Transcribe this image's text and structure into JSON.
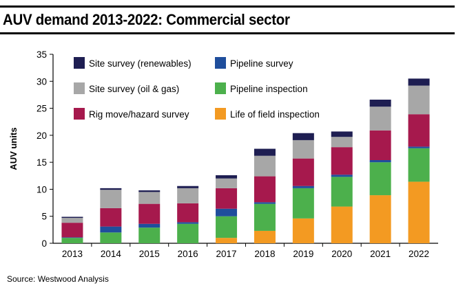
{
  "header": {
    "title": "AUV demand 2013-2022: Commercial sector"
  },
  "footer": {
    "source": "Source: Westwood Analysis"
  },
  "chart_data": {
    "type": "bar",
    "stacked": true,
    "title": "AUV demand 2013-2022: Commercial sector",
    "xlabel": "",
    "ylabel": "AUV units",
    "ylim": [
      0,
      35
    ],
    "yticks": [
      0,
      5,
      10,
      15,
      20,
      25,
      30,
      35
    ],
    "grid": false,
    "legend_position": "top-left",
    "categories": [
      "2013",
      "2014",
      "2015",
      "2016",
      "2017",
      "2018",
      "2019",
      "2020",
      "2021",
      "2022"
    ],
    "series": [
      {
        "name": "Life of field inspection",
        "color": "#f39a22",
        "values": [
          0,
          0,
          0,
          0,
          1.0,
          2.3,
          4.6,
          6.8,
          8.9,
          11.4
        ]
      },
      {
        "name": "Pipeline inspection",
        "color": "#4cb04c",
        "values": [
          1.0,
          2.0,
          2.9,
          3.6,
          4.0,
          5.0,
          5.6,
          5.5,
          6.1,
          6.2
        ]
      },
      {
        "name": "Pipeline survey",
        "color": "#1f4e9c",
        "values": [
          0.1,
          1.1,
          0.7,
          0.3,
          1.4,
          0.3,
          0.4,
          0.4,
          0.4,
          0.3
        ]
      },
      {
        "name": "Rig move/hazard survey",
        "color": "#a6194d",
        "values": [
          2.7,
          3.4,
          3.7,
          3.5,
          3.8,
          4.8,
          5.1,
          5.1,
          5.5,
          6.0
        ]
      },
      {
        "name": "Site survey (oil & gas)",
        "color": "#a7a7a7",
        "values": [
          0.9,
          3.4,
          2.2,
          2.8,
          1.8,
          3.8,
          3.4,
          1.9,
          4.4,
          5.3
        ]
      },
      {
        "name": "Site survey (renewables)",
        "color": "#1e1e52",
        "values": [
          0.2,
          0.3,
          0.3,
          0.4,
          0.6,
          1.3,
          1.3,
          1.0,
          1.3,
          1.3
        ]
      }
    ],
    "legend_order": [
      "Site survey (renewables)",
      "Pipeline survey",
      "Site survey (oil & gas)",
      "Pipeline inspection",
      "Rig move/hazard survey",
      "Life of field inspection"
    ]
  }
}
